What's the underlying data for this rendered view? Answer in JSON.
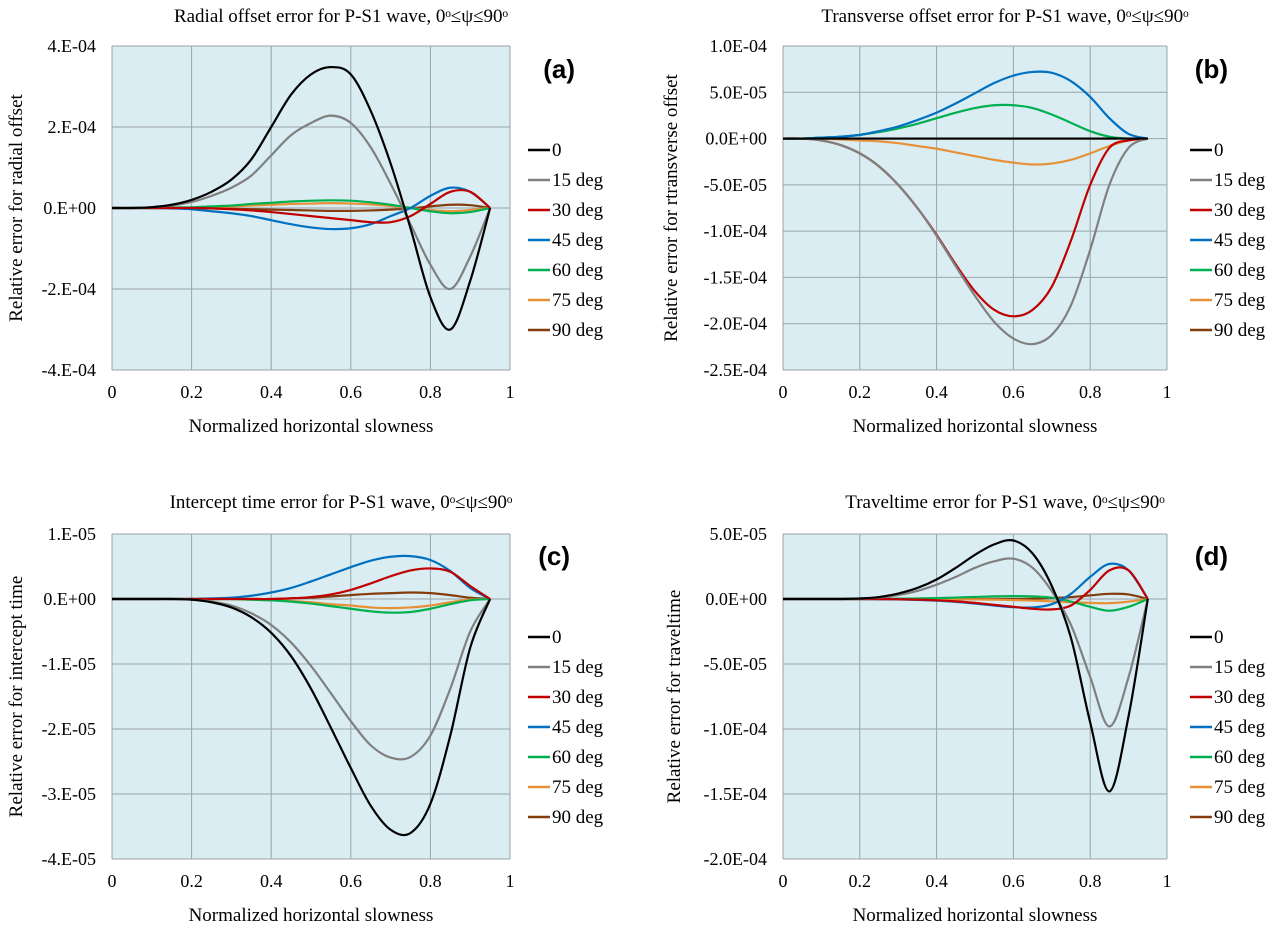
{
  "colors": {
    "plot_bg": "#d9edf3",
    "grid": "#9aa4a8",
    "series": [
      "#000000",
      "#808080",
      "#c00000",
      "#0070c0",
      "#00b050",
      "#e69138",
      "#843c0c"
    ]
  },
  "chart_data": [
    {
      "type": "line",
      "panel": "(a)",
      "title": "Radial offset error for P-S1 wave, 0ᵒ≤ψ≤90ᵒ",
      "xlabel": "Normalized horizontal slowness",
      "ylabel": "Relative error for radial offset",
      "xlim": [
        0,
        1
      ],
      "ylim": [
        -0.0004,
        0.0004
      ],
      "xticks": [
        0,
        0.2,
        0.4,
        0.6,
        0.8,
        1
      ],
      "xtick_labels": [
        "0",
        "0.2",
        "0.4",
        "0.6",
        "0.8",
        "1"
      ],
      "yticks": [
        0.0004,
        0.0002,
        0,
        -0.0002,
        -0.0004
      ],
      "ytick_labels": [
        "4.E-04",
        "2.E-04",
        "0.E+00",
        "-2.E-04",
        "-4.E-04"
      ],
      "grid": true,
      "legend": "right",
      "x": [
        0,
        0.05,
        0.1,
        0.15,
        0.2,
        0.25,
        0.3,
        0.35,
        0.4,
        0.45,
        0.5,
        0.55,
        0.6,
        0.65,
        0.7,
        0.75,
        0.8,
        0.85,
        0.9,
        0.95
      ],
      "series": [
        {
          "name": "0",
          "values": [
            0,
            0,
            2e-06,
            8e-06,
            2e-05,
            4e-05,
            7e-05,
            0.00012,
            0.0002,
            0.00028,
            0.00033,
            0.000348,
            0.00033,
            0.00024,
            0.00011,
            -5e-05,
            -0.00022,
            -0.0003,
            -0.00018,
            0
          ]
        },
        {
          "name": "15 deg",
          "values": [
            0,
            0,
            2e-06,
            6e-06,
            1.5e-05,
            3e-05,
            5e-05,
            8e-05,
            0.00013,
            0.00018,
            0.00021,
            0.000228,
            0.00021,
            0.00015,
            6e-05,
            -4e-05,
            -0.00014,
            -0.0002,
            -0.00012,
            0
          ]
        },
        {
          "name": "30 deg",
          "values": [
            0,
            0,
            0,
            0,
            0,
            -1e-06,
            -3e-06,
            -6e-06,
            -1e-05,
            -1.5e-05,
            -2e-05,
            -2.5e-05,
            -3e-05,
            -3.5e-05,
            -3.5e-05,
            -2e-05,
            1e-05,
            4e-05,
            4e-05,
            0
          ]
        },
        {
          "name": "45 deg",
          "values": [
            0,
            0,
            0,
            -1e-06,
            -3e-06,
            -8e-06,
            -1.3e-05,
            -2e-05,
            -3e-05,
            -4e-05,
            -4.8e-05,
            -5.2e-05,
            -5e-05,
            -4e-05,
            -2e-05,
            0,
            3e-05,
            5e-05,
            4e-05,
            0
          ]
        },
        {
          "name": "60 deg",
          "values": [
            0,
            0,
            0,
            1e-06,
            2e-06,
            4e-06,
            6e-06,
            1e-05,
            1.3e-05,
            1.6e-05,
            1.8e-05,
            1.9e-05,
            1.8e-05,
            1.4e-05,
            8e-06,
            0,
            -8e-06,
            -1.3e-05,
            -1e-05,
            0
          ]
        },
        {
          "name": "75 deg",
          "values": [
            0,
            0,
            0,
            0,
            1e-06,
            2e-06,
            4e-06,
            6e-06,
            8e-06,
            1e-05,
            1.1e-05,
            1.2e-05,
            1.1e-05,
            9e-06,
            5e-06,
            0,
            -5e-06,
            -8e-06,
            -5e-06,
            0
          ]
        },
        {
          "name": "90 deg",
          "values": [
            0,
            0,
            0,
            0,
            0,
            -1e-06,
            -2e-06,
            -3e-06,
            -4e-06,
            -5e-06,
            -6e-06,
            -7e-06,
            -7e-06,
            -6e-06,
            -4e-06,
            -1e-06,
            4e-06,
            8e-06,
            7e-06,
            0
          ]
        }
      ]
    },
    {
      "type": "line",
      "panel": "(b)",
      "title": "Transverse offset error for P-S1 wave, 0ᵒ≤ψ≤90ᵒ",
      "xlabel": "Normalized horizontal slowness",
      "ylabel": "Relative error for rtransverse offset",
      "xlim": [
        0,
        1
      ],
      "ylim": [
        -0.00025,
        0.0001
      ],
      "xticks": [
        0,
        0.2,
        0.4,
        0.6,
        0.8,
        1
      ],
      "xtick_labels": [
        "0",
        "0.2",
        "0.4",
        "0.6",
        "0.8",
        "1"
      ],
      "yticks": [
        0.0001,
        5e-05,
        0,
        -5e-05,
        -0.0001,
        -0.00015,
        -0.0002,
        -0.00025
      ],
      "ytick_labels": [
        "1.0E-04",
        "5.0E-05",
        "0.0E+00",
        "-5.0E-05",
        "-1.0E-04",
        "-1.5E-04",
        "-2.0E-04",
        "-2.5E-04"
      ],
      "grid": true,
      "legend": "right",
      "x": [
        0,
        0.05,
        0.1,
        0.15,
        0.2,
        0.25,
        0.3,
        0.35,
        0.4,
        0.45,
        0.5,
        0.55,
        0.6,
        0.65,
        0.7,
        0.75,
        0.8,
        0.85,
        0.9,
        0.95
      ],
      "series": [
        {
          "name": "0",
          "values": [
            0,
            0,
            0,
            0,
            0,
            0,
            0,
            0,
            0,
            0,
            0,
            0,
            0,
            0,
            0,
            0,
            0,
            0,
            0,
            0
          ]
        },
        {
          "name": "15 deg",
          "values": [
            0,
            0,
            -2e-06,
            -7e-06,
            -1.6e-05,
            -3e-05,
            -5e-05,
            -7.5e-05,
            -0.000105,
            -0.000138,
            -0.00017,
            -0.000198,
            -0.000216,
            -0.000222,
            -0.000212,
            -0.00018,
            -0.00012,
            -5e-05,
            -1e-05,
            0
          ]
        },
        {
          "name": "30 deg",
          "values": [
            0,
            0,
            -2e-06,
            -7e-06,
            -1.6e-05,
            -3e-05,
            -5e-05,
            -7.5e-05,
            -0.000104,
            -0.000136,
            -0.000165,
            -0.000185,
            -0.000192,
            -0.000185,
            -0.00016,
            -0.00011,
            -5e-05,
            -1e-05,
            -2e-06,
            0
          ]
        },
        {
          "name": "45 deg",
          "values": [
            0,
            0,
            1e-06,
            2e-06,
            4e-06,
            8e-06,
            1.3e-05,
            2e-05,
            2.8e-05,
            3.8e-05,
            4.9e-05,
            6e-05,
            6.8e-05,
            7.2e-05,
            7.1e-05,
            6.2e-05,
            4.5e-05,
            2.2e-05,
            5e-06,
            0
          ]
        },
        {
          "name": "60 deg",
          "values": [
            0,
            0,
            1e-06,
            2e-06,
            4e-06,
            7e-06,
            1.1e-05,
            1.6e-05,
            2.2e-05,
            2.8e-05,
            3.3e-05,
            3.6e-05,
            3.6e-05,
            3.3e-05,
            2.6e-05,
            1.7e-05,
            8e-06,
            2e-06,
            0,
            0
          ]
        },
        {
          "name": "75 deg",
          "values": [
            0,
            0,
            0,
            -1e-06,
            -2e-06,
            -3e-06,
            -5e-06,
            -8e-06,
            -1.1e-05,
            -1.5e-05,
            -1.9e-05,
            -2.3e-05,
            -2.6e-05,
            -2.8e-05,
            -2.7e-05,
            -2.3e-05,
            -1.6e-05,
            -8e-06,
            -2e-06,
            0
          ]
        },
        {
          "name": "90 deg",
          "values": [
            0,
            0,
            0,
            0,
            0,
            0,
            0,
            0,
            0,
            0,
            0,
            0,
            0,
            0,
            0,
            0,
            0,
            0,
            0,
            0
          ]
        }
      ]
    },
    {
      "type": "line",
      "panel": "(c)",
      "title": "Intercept time error for P-S1 wave, 0ᵒ≤ψ≤90ᵒ",
      "xlabel": "Normalized horizontal slowness",
      "ylabel": "Relative error for intercept time",
      "xlim": [
        0,
        1
      ],
      "ylim": [
        -4e-05,
        1e-05
      ],
      "xticks": [
        0,
        0.2,
        0.4,
        0.6,
        0.8,
        1
      ],
      "xtick_labels": [
        "0",
        "0.2",
        "0.4",
        "0.6",
        "0.8",
        "1"
      ],
      "yticks": [
        1e-05,
        0,
        -1e-05,
        -2e-05,
        -3e-05,
        -4e-05
      ],
      "ytick_labels": [
        "1.E-05",
        "0.E+00",
        "-1.E-05",
        "-2.E-05",
        "-3.E-05",
        "-4.E-05"
      ],
      "grid": true,
      "legend": "right",
      "x": [
        0,
        0.05,
        0.1,
        0.15,
        0.2,
        0.25,
        0.3,
        0.35,
        0.4,
        0.45,
        0.5,
        0.55,
        0.6,
        0.65,
        0.7,
        0.75,
        0.8,
        0.85,
        0.9,
        0.95
      ],
      "series": [
        {
          "name": "0",
          "values": [
            0,
            0,
            0,
            0,
            -1e-07,
            -5e-07,
            -1.3e-06,
            -2.8e-06,
            -5.2e-06,
            -8.8e-06,
            -1.38e-05,
            -1.98e-05,
            -2.6e-05,
            -3.18e-05,
            -3.55e-05,
            -3.6e-05,
            -3.15e-05,
            -2.1e-05,
            -7.5e-06,
            0
          ]
        },
        {
          "name": "15 deg",
          "values": [
            0,
            0,
            0,
            0,
            -1e-07,
            -4e-07,
            -1e-06,
            -2.2e-06,
            -4e-06,
            -6.7e-06,
            -1.03e-05,
            -1.45e-05,
            -1.88e-05,
            -2.25e-05,
            -2.44e-05,
            -2.43e-05,
            -2.1e-05,
            -1.38e-05,
            -5e-06,
            0
          ]
        },
        {
          "name": "30 deg",
          "values": [
            0,
            0,
            0,
            0,
            0,
            0,
            0,
            0,
            0,
            1e-07,
            3e-07,
            7e-07,
            1.4e-06,
            2.4e-06,
            3.5e-06,
            4.4e-06,
            4.7e-06,
            4.2e-06,
            2e-06,
            0
          ]
        },
        {
          "name": "45 deg",
          "values": [
            0,
            0,
            0,
            0,
            0,
            1e-07,
            2e-07,
            5e-07,
            1e-06,
            1.7e-06,
            2.7e-06,
            3.8e-06,
            4.9e-06,
            5.9e-06,
            6.5e-06,
            6.6e-06,
            6e-06,
            4.3e-06,
            1.7e-06,
            0
          ]
        },
        {
          "name": "60 deg",
          "values": [
            0,
            0,
            0,
            0,
            0,
            0,
            0,
            -1e-07,
            -2e-07,
            -4e-07,
            -7e-07,
            -1.1e-06,
            -1.5e-06,
            -1.9e-06,
            -2.1e-06,
            -2e-06,
            -1.5e-06,
            -8e-07,
            -2e-07,
            0
          ]
        },
        {
          "name": "75 deg",
          "values": [
            0,
            0,
            0,
            0,
            0,
            0,
            0,
            -1e-07,
            -2e-07,
            -3e-07,
            -5e-07,
            -8e-07,
            -1e-06,
            -1.3e-06,
            -1.4e-06,
            -1.3e-06,
            -1e-06,
            -5e-07,
            -1e-07,
            0
          ]
        },
        {
          "name": "90 deg",
          "values": [
            0,
            0,
            0,
            0,
            0,
            0,
            0,
            0,
            0,
            1e-07,
            2e-07,
            4e-07,
            6e-07,
            8e-07,
            9e-07,
            1e-06,
            9e-07,
            6e-07,
            2e-07,
            0
          ]
        }
      ]
    },
    {
      "type": "line",
      "panel": "(d)",
      "title": "Traveltime error for P-S1 wave, 0ᵒ≤ψ≤90ᵒ",
      "xlabel": "Normalized horizontal slowness",
      "ylabel": "Relative error for traveltime",
      "xlim": [
        0,
        1
      ],
      "ylim": [
        -0.0002,
        5e-05
      ],
      "xticks": [
        0,
        0.2,
        0.4,
        0.6,
        0.8,
        1
      ],
      "xtick_labels": [
        "0",
        "0.2",
        "0.4",
        "0.6",
        "0.8",
        "1"
      ],
      "yticks": [
        5e-05,
        0,
        -5e-05,
        -0.0001,
        -0.00015,
        -0.0002
      ],
      "ytick_labels": [
        "5.0E-05",
        "0.0E+00",
        "-5.0E-05",
        "-1.0E-04",
        "-1.5E-04",
        "-2.0E-04"
      ],
      "grid": true,
      "legend": "right",
      "x": [
        0,
        0.05,
        0.1,
        0.15,
        0.2,
        0.25,
        0.3,
        0.35,
        0.4,
        0.45,
        0.5,
        0.55,
        0.6,
        0.65,
        0.7,
        0.75,
        0.8,
        0.85,
        0.9,
        0.95
      ],
      "series": [
        {
          "name": "0",
          "values": [
            0,
            0,
            0,
            0,
            4e-07,
            1.5e-06,
            4.2e-06,
            8.5e-06,
            1.5e-05,
            2.4e-05,
            3.4e-05,
            4.2e-05,
            4.5e-05,
            3.5e-05,
            1e-05,
            -3e-05,
            -9.5e-05,
            -0.000148,
            -9e-05,
            0
          ]
        },
        {
          "name": "15 deg",
          "values": [
            0,
            0,
            0,
            0,
            3e-07,
            1.1e-06,
            3e-06,
            6.2e-06,
            1.1e-05,
            1.7e-05,
            2.4e-05,
            2.9e-05,
            3.1e-05,
            2.4e-05,
            6e-06,
            -2e-05,
            -6e-05,
            -9.8e-05,
            -6e-05,
            0
          ]
        },
        {
          "name": "30 deg",
          "values": [
            0,
            0,
            0,
            0,
            0,
            -1e-07,
            -2e-07,
            -5e-07,
            -1e-06,
            -1.8e-06,
            -3e-06,
            -4.5e-06,
            -6e-06,
            -7.5e-06,
            -8e-06,
            -5e-06,
            7e-06,
            2.2e-05,
            2.2e-05,
            0
          ]
        },
        {
          "name": "45 deg",
          "values": [
            0,
            0,
            0,
            0,
            0,
            -1e-07,
            -3e-07,
            -7e-07,
            -1.3e-06,
            -2.2e-06,
            -3.5e-06,
            -5e-06,
            -6.3e-06,
            -6.5e-06,
            -4e-06,
            4e-06,
            1.7e-05,
            2.7e-05,
            2.2e-05,
            0
          ]
        },
        {
          "name": "60 deg",
          "values": [
            0,
            0,
            0,
            0,
            0,
            1e-07,
            2e-07,
            4e-07,
            7e-07,
            1.1e-06,
            1.6e-06,
            2e-06,
            2.2e-06,
            2e-06,
            1e-06,
            -2e-06,
            -6e-06,
            -9e-06,
            -6e-06,
            0
          ]
        },
        {
          "name": "75 deg",
          "values": [
            0,
            0,
            0,
            0,
            0,
            0,
            0,
            0,
            -1e-07,
            -2e-07,
            -3e-07,
            -5e-07,
            -8e-07,
            -1.2e-06,
            -1.8e-06,
            -2.5e-06,
            -3e-06,
            -3.2e-06,
            -2e-06,
            0
          ]
        },
        {
          "name": "90 deg",
          "values": [
            0,
            0,
            0,
            0,
            0,
            0,
            0,
            0,
            0,
            0,
            0,
            0,
            0,
            2e-07,
            7e-07,
            1.5e-06,
            2.8e-06,
            4e-06,
            3.5e-06,
            0
          ]
        }
      ]
    }
  ]
}
